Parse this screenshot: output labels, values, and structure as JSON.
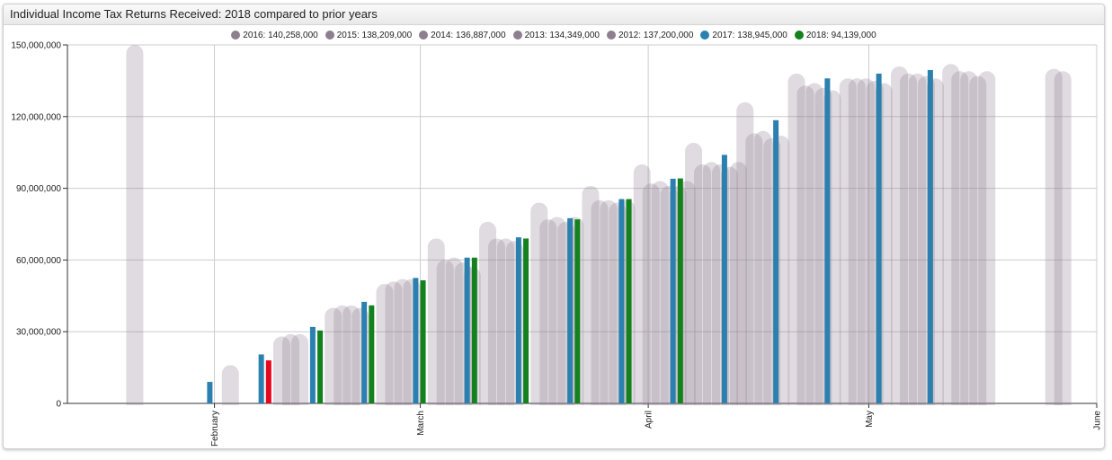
{
  "title": "Individual Income Tax Returns Received: 2018 compared to prior years",
  "legend": [
    {
      "label": "2016: 140,258,000",
      "color": "#8e7f8e"
    },
    {
      "label": "2015: 138,209,000",
      "color": "#8e7f8e"
    },
    {
      "label": "2014: 136,887,000",
      "color": "#8e7f8e"
    },
    {
      "label": "2013: 134,349,000",
      "color": "#8e7f8e"
    },
    {
      "label": "2012: 137,200,000",
      "color": "#8e7f8e"
    },
    {
      "label": "2017: 138,945,000",
      "color": "#2b80b0"
    },
    {
      "label": "2018: 94,139,000",
      "color": "#13821e"
    }
  ],
  "chart_data": {
    "type": "bar",
    "ylim": [
      0,
      150000000
    ],
    "y_ticks": [
      "0",
      "30,000,000",
      "60,000,000",
      "90,000,000",
      "120,000,000",
      "150,000,000"
    ],
    "y_tick_values": [
      0,
      30000000,
      60000000,
      90000000,
      120000000,
      150000000
    ],
    "x_range": [
      "2018-01-12",
      "2018-06-01"
    ],
    "x_ticks": [
      {
        "label": "February",
        "date": "2018-02-01"
      },
      {
        "label": "March",
        "date": "2018-03-01"
      },
      {
        "label": "April",
        "date": "2018-04-01"
      },
      {
        "label": "May",
        "date": "2018-05-01"
      },
      {
        "label": "June",
        "date": "2018-06-01"
      }
    ],
    "grid": true,
    "legend_position": "top-center",
    "colors": {
      "prior": "#8e7f8e",
      "y2017": "#2b80b0",
      "y2018": "#13821e",
      "y2018_highlight": "#e5071d"
    },
    "prior_years": [
      {
        "date": "2018-01-20",
        "values": [
          150000000
        ]
      },
      {
        "date": "2018-02-02",
        "values": [
          16000000
        ]
      },
      {
        "date": "2018-02-09",
        "values": [
          28000000,
          29000000,
          29000000
        ]
      },
      {
        "date": "2018-02-16",
        "values": [
          40000000,
          41000000,
          41000000,
          40000000
        ]
      },
      {
        "date": "2018-02-23",
        "values": [
          50000000,
          51000000,
          52000000,
          52000000
        ]
      },
      {
        "date": "2018-03-02",
        "values": [
          69000000,
          60000000,
          61000000,
          59000000,
          57000000
        ]
      },
      {
        "date": "2018-03-09",
        "values": [
          76000000,
          69000000,
          69000000,
          68000000
        ]
      },
      {
        "date": "2018-03-16",
        "values": [
          84000000,
          77000000,
          78000000,
          76000000,
          78000000
        ]
      },
      {
        "date": "2018-03-23",
        "values": [
          91000000,
          85000000,
          85000000,
          84000000,
          85000000
        ]
      },
      {
        "date": "2018-03-30",
        "values": [
          100000000,
          92000000,
          93000000,
          91000000,
          91000000,
          93000000
        ]
      },
      {
        "date": "2018-04-06",
        "values": [
          109000000,
          100000000,
          101000000,
          100000000,
          99000000,
          101000000
        ]
      },
      {
        "date": "2018-04-13",
        "values": [
          126000000,
          113000000,
          114000000,
          111000000,
          112000000
        ]
      },
      {
        "date": "2018-04-20",
        "values": [
          138000000,
          133000000,
          134000000,
          132000000,
          131000000
        ]
      },
      {
        "date": "2018-04-27",
        "values": [
          136000000,
          136000000,
          136000000,
          135000000,
          134000000
        ]
      },
      {
        "date": "2018-05-04",
        "values": [
          141000000,
          138000000,
          138000000,
          137000000,
          136000000
        ]
      },
      {
        "date": "2018-05-11",
        "values": [
          142000000,
          139000000,
          139000000,
          137000000,
          139000000
        ]
      },
      {
        "date": "2018-05-25",
        "values": [
          140000000,
          139000000
        ]
      }
    ],
    "series_2017": [
      {
        "date": "2018-01-31",
        "value": 9000000
      },
      {
        "date": "2018-02-07",
        "value": 20500000
      },
      {
        "date": "2018-02-14",
        "value": 32000000
      },
      {
        "date": "2018-02-21",
        "value": 42500000
      },
      {
        "date": "2018-02-28",
        "value": 52500000
      },
      {
        "date": "2018-03-07",
        "value": 61000000
      },
      {
        "date": "2018-03-14",
        "value": 69500000
      },
      {
        "date": "2018-03-21",
        "value": 77500000
      },
      {
        "date": "2018-03-28",
        "value": 85500000
      },
      {
        "date": "2018-04-04",
        "value": 94000000
      },
      {
        "date": "2018-04-11",
        "value": 104000000
      },
      {
        "date": "2018-04-18",
        "value": 118500000
      },
      {
        "date": "2018-04-25",
        "value": 136000000
      },
      {
        "date": "2018-05-02",
        "value": 138000000
      },
      {
        "date": "2018-05-09",
        "value": 139500000
      }
    ],
    "series_2018": [
      {
        "date": "2018-02-08",
        "value": 18000000,
        "highlight": true
      },
      {
        "date": "2018-02-15",
        "value": 30500000
      },
      {
        "date": "2018-02-22",
        "value": 41000000
      },
      {
        "date": "2018-03-01",
        "value": 51500000
      },
      {
        "date": "2018-03-08",
        "value": 61000000
      },
      {
        "date": "2018-03-15",
        "value": 69000000
      },
      {
        "date": "2018-03-22",
        "value": 77000000
      },
      {
        "date": "2018-03-29",
        "value": 85500000
      },
      {
        "date": "2018-04-05",
        "value": 94139000
      }
    ]
  }
}
